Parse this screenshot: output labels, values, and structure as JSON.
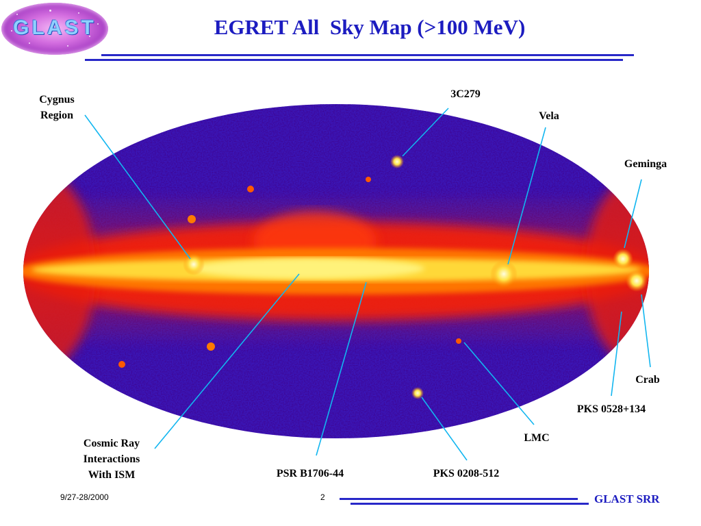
{
  "logo": {
    "text": "GLAST"
  },
  "slide": {
    "title": "EGRET All  Sky Map (>100 MeV)"
  },
  "map": {
    "labels": [
      {
        "id": "cygnus",
        "text": "Cygnus\nRegion"
      },
      {
        "id": "c3c279",
        "text": "3C279"
      },
      {
        "id": "vela",
        "text": "Vela"
      },
      {
        "id": "geminga",
        "text": "Geminga"
      },
      {
        "id": "crab",
        "text": "Crab"
      },
      {
        "id": "pks0528",
        "text": "PKS 0528+134"
      },
      {
        "id": "lmc",
        "text": "LMC"
      },
      {
        "id": "cosmic",
        "text": "Cosmic Ray\nInteractions\nWith ISM"
      },
      {
        "id": "psr",
        "text": "PSR B1706-44"
      },
      {
        "id": "pks0208",
        "text": "PKS 0208-512"
      }
    ]
  },
  "colors": {
    "title": "#1c1cc0",
    "rule": "#2828c8",
    "pointer": "#12b6f0",
    "sky": "#3b16b6",
    "band": "#ffe54a"
  },
  "footer": {
    "date": "9/27-28/2000",
    "page": "2",
    "brand": "GLAST SRR"
  }
}
